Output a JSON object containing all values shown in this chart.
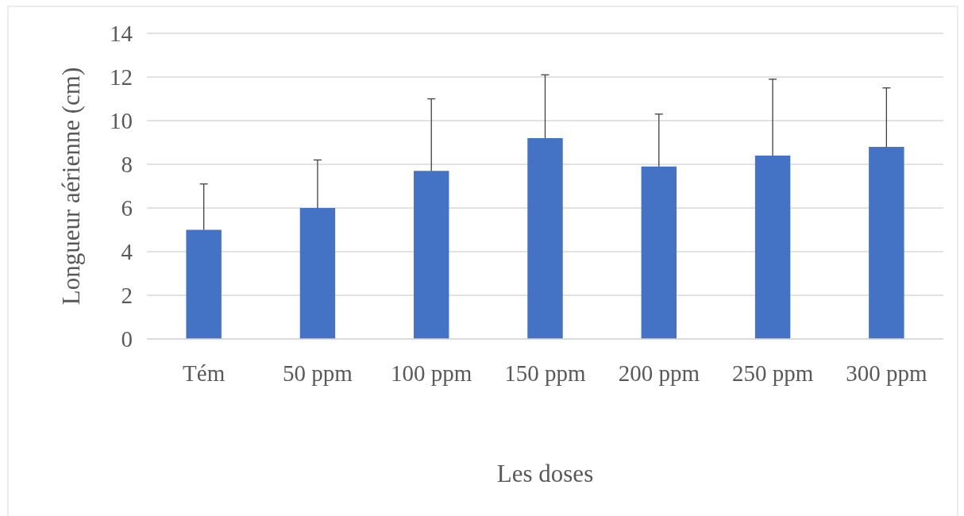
{
  "chart_data": {
    "type": "bar",
    "xlabel": "Les doses",
    "ylabel": "Longueur aérienne (cm)",
    "categories": [
      "Tém",
      "50 ppm",
      "100 ppm",
      "150 ppm",
      "200 ppm",
      "250 ppm",
      "300 ppm"
    ],
    "values": [
      5.0,
      6.0,
      7.7,
      9.2,
      7.9,
      8.4,
      8.8
    ],
    "errors": [
      [
        5.0,
        7.1
      ],
      [
        6.0,
        8.2
      ],
      [
        7.7,
        11.0
      ],
      [
        9.2,
        12.1
      ],
      [
        7.9,
        10.3
      ],
      [
        8.4,
        11.9
      ],
      [
        8.8,
        11.5
      ]
    ],
    "color": "#4472c4",
    "ylim": [
      0,
      14
    ],
    "yticks": [
      0,
      2,
      4,
      6,
      8,
      10,
      12,
      14
    ],
    "grid": "y"
  }
}
